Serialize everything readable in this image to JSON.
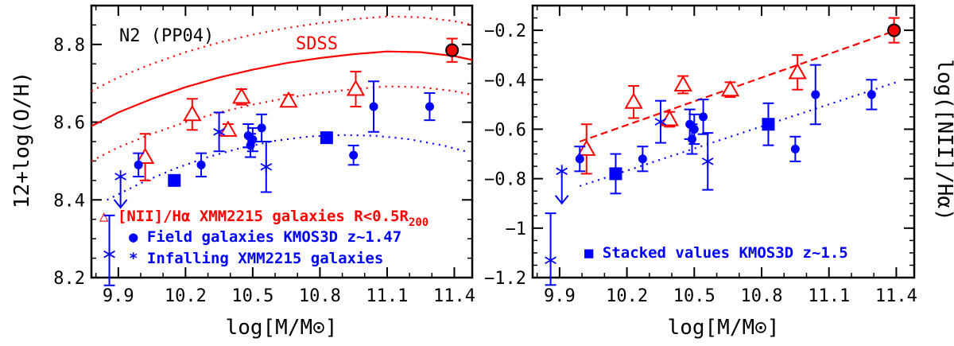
{
  "chart_data": [
    {
      "type": "scatter",
      "panel": "left",
      "xlabel": "log[M/M⊙]",
      "ylabel": "12+log(O/H)",
      "xlim": [
        9.78,
        11.48
      ],
      "ylim": [
        8.2,
        8.9
      ],
      "xticks": [
        9.9,
        10.2,
        10.5,
        10.8,
        11.1,
        11.4
      ],
      "xtick_labels": [
        "9.9",
        "10.2",
        "10.5",
        "10.8",
        "11.1",
        "11.4"
      ],
      "yticks": [
        8.2,
        8.4,
        8.6,
        8.8
      ],
      "ytick_labels": [
        "8.2",
        "8.4",
        "8.6",
        "8.8"
      ],
      "annotations": {
        "method": "N2 (PP04)",
        "sdss": "SDSS"
      },
      "legend": [
        {
          "text": "△ [NII]/Hα XMM2215 galaxies R<0.5R",
          "sub": "200",
          "color": "#ff0000"
        },
        {
          "text": "● Field galaxies KMOS3D z~1.47",
          "color": "#0000ff"
        },
        {
          "text": "* Infalling XMM2215 galaxies",
          "color": "#0000ff"
        }
      ],
      "sdss_relation": {
        "color": "#ff0000",
        "x": [
          9.78,
          9.9,
          10.05,
          10.2,
          10.35,
          10.5,
          10.65,
          10.8,
          10.95,
          11.1,
          11.25,
          11.4,
          11.48
        ],
        "y": [
          8.59,
          8.625,
          8.66,
          8.69,
          8.715,
          8.735,
          8.752,
          8.765,
          8.775,
          8.782,
          8.78,
          8.77,
          8.76
        ],
        "upper": [
          8.68,
          8.715,
          8.75,
          8.78,
          8.805,
          8.825,
          8.842,
          8.855,
          8.865,
          8.872,
          8.87,
          8.86,
          8.85
        ],
        "lower": [
          8.5,
          8.535,
          8.57,
          8.6,
          8.625,
          8.645,
          8.662,
          8.675,
          8.685,
          8.692,
          8.69,
          8.68,
          8.67
        ]
      },
      "field_relation": {
        "color": "#0000ff",
        "x": [
          9.85,
          10.0,
          10.15,
          10.3,
          10.45,
          10.6,
          10.75,
          10.9,
          11.05,
          11.2,
          11.35,
          11.45
        ],
        "y": [
          8.4,
          8.443,
          8.48,
          8.51,
          8.534,
          8.552,
          8.563,
          8.567,
          8.565,
          8.556,
          8.54,
          8.525
        ]
      },
      "series": [
        {
          "name": "[NII]/Hα XMM2215 galaxies R<0.5R200",
          "marker": "open-triangle",
          "color": "#ff0000",
          "x": [
            10.02,
            10.23,
            10.39,
            10.45,
            10.66,
            10.96
          ],
          "y": [
            8.51,
            8.62,
            8.58,
            8.665,
            8.655,
            8.685
          ],
          "err": [
            0.06,
            0.04,
            0.015,
            0.02,
            0.015,
            0.045
          ]
        },
        {
          "name": "Field galaxies KMOS3D z~1.47",
          "marker": "filled-circle",
          "color": "#0000ff",
          "x": [
            9.99,
            10.27,
            10.48,
            10.49,
            10.5,
            10.54,
            10.95,
            11.04,
            11.29
          ],
          "y": [
            8.49,
            8.49,
            8.565,
            8.54,
            8.555,
            8.585,
            8.515,
            8.64,
            8.64
          ],
          "err": [
            0.03,
            0.03,
            0.03,
            0.03,
            0.03,
            0.035,
            0.025,
            0.065,
            0.035
          ]
        },
        {
          "name": "Infalling XMM2215 galaxies",
          "marker": "asterisk",
          "color": "#0000ff",
          "x": [
            10.35,
            10.56
          ],
          "y": [
            8.575,
            8.485
          ],
          "err": [
            0.05,
            0.065
          ]
        },
        {
          "name": "Stacked values KMOS3D z~1.5",
          "marker": "filled-square",
          "color": "#0000ff",
          "x": [
            10.15,
            10.83
          ],
          "y": [
            8.45,
            8.56
          ]
        },
        {
          "name": "SDSS reference",
          "marker": "red-circle",
          "color": "#ff0000",
          "x": [
            11.39
          ],
          "y": [
            8.785
          ],
          "err": [
            0.03
          ]
        }
      ],
      "upper_limits": [
        {
          "x": 9.91,
          "y": 8.46,
          "marker": "asterisk",
          "arrow_to": 8.38,
          "color": "#0000ff"
        },
        {
          "x": 9.86,
          "y": 8.26,
          "marker": "asterisk",
          "err_low": 0.08,
          "err_high": 0.1,
          "color": "#0000ff"
        }
      ]
    },
    {
      "type": "scatter",
      "panel": "right",
      "xlabel": "log[M/M⊙]",
      "ylabel": "log([NII]/Hα)",
      "xlim": [
        9.78,
        11.48
      ],
      "ylim": [
        -1.2,
        -0.1
      ],
      "xticks": [
        9.9,
        10.2,
        10.5,
        10.8,
        11.1,
        11.4
      ],
      "xtick_labels": [
        "9.9",
        "10.2",
        "10.5",
        "10.8",
        "11.1",
        "11.4"
      ],
      "yticks": [
        -1.2,
        -1.0,
        -0.8,
        -0.6,
        -0.4,
        -0.2
      ],
      "ytick_labels": [
        "−1.2",
        "−1",
        "−0.8",
        "−0.6",
        "−0.4",
        "−0.2"
      ],
      "legend": [
        {
          "text": "■ Stacked values KMOS3D z~1.5",
          "color": "#0000ff"
        }
      ],
      "cluster_fit": {
        "color": "#ff0000",
        "x": [
          9.99,
          11.4
        ],
        "y": [
          -0.65,
          -0.2
        ]
      },
      "field_fit": {
        "color": "#0000ff",
        "x": [
          9.99,
          11.4
        ],
        "y": [
          -0.83,
          -0.41
        ]
      },
      "series": [
        {
          "name": "[NII]/Hα XMM2215 galaxies R<0.5R200",
          "marker": "open-triangle",
          "color": "#ff0000",
          "x": [
            10.02,
            10.23,
            10.39,
            10.45,
            10.66,
            10.96
          ],
          "y": [
            -0.68,
            -0.49,
            -0.56,
            -0.42,
            -0.44,
            -0.37
          ],
          "err": [
            0.1,
            0.065,
            0.03,
            0.035,
            0.03,
            0.07
          ]
        },
        {
          "name": "Field galaxies KMOS3D z~1.47",
          "marker": "filled-circle",
          "color": "#0000ff",
          "x": [
            9.99,
            10.27,
            10.48,
            10.49,
            10.5,
            10.54,
            10.95,
            11.04,
            11.29
          ],
          "y": [
            -0.72,
            -0.72,
            -0.58,
            -0.64,
            -0.6,
            -0.55,
            -0.68,
            -0.46,
            -0.46
          ],
          "err": [
            0.05,
            0.05,
            0.06,
            0.06,
            0.06,
            0.07,
            0.05,
            0.12,
            0.06
          ]
        },
        {
          "name": "Infalling XMM2215 galaxies",
          "marker": "asterisk",
          "color": "#0000ff",
          "x": [
            10.35,
            10.56
          ],
          "y": [
            -0.57,
            -0.73
          ],
          "err": [
            0.085,
            0.115
          ]
        },
        {
          "name": "Stacked values KMOS3D z~1.5",
          "marker": "filled-square",
          "color": "#0000ff",
          "x": [
            10.15,
            10.83
          ],
          "y": [
            -0.78,
            -0.58
          ],
          "err": [
            0.08,
            0.085
          ]
        },
        {
          "name": "SDSS reference",
          "marker": "red-circle",
          "color": "#ff0000",
          "x": [
            11.39
          ],
          "y": [
            -0.2
          ],
          "err": [
            0.05
          ]
        }
      ],
      "upper_limits": [
        {
          "x": 9.91,
          "y": -0.77,
          "marker": "asterisk",
          "arrow_to": -0.9,
          "color": "#0000ff"
        },
        {
          "x": 9.86,
          "y": -1.13,
          "marker": "asterisk",
          "err_low": 0.1,
          "err_high": 0.19,
          "color": "#0000ff"
        }
      ]
    }
  ]
}
